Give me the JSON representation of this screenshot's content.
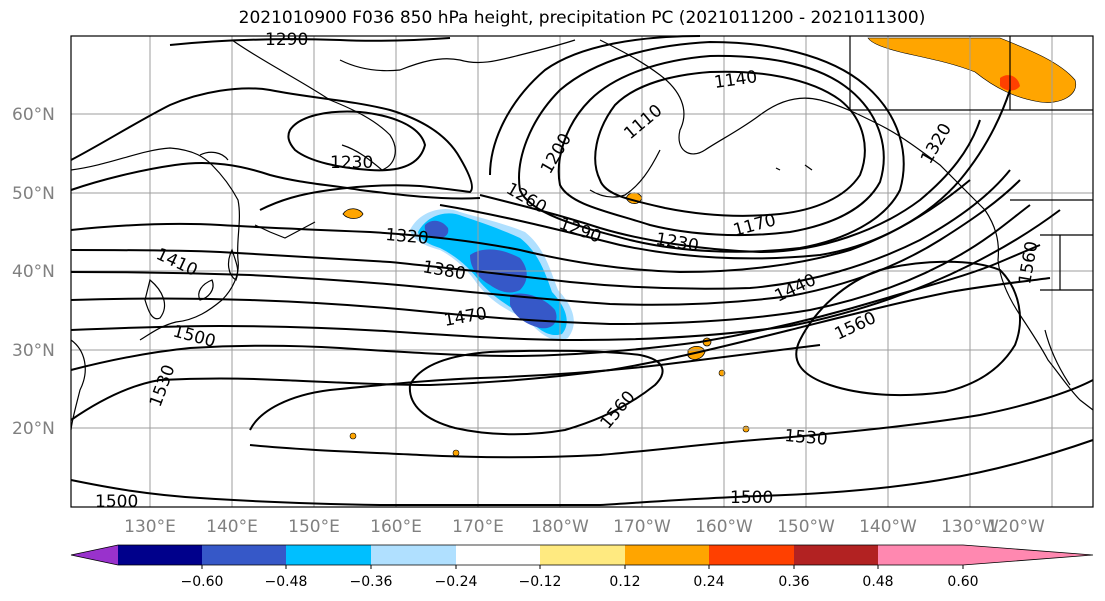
{
  "title": "2021010900 F036 850 hPa height, precipitation PC (2021011200 - 2021011300)",
  "map": {
    "lat_labels": [
      "60°N",
      "50°N",
      "40°N",
      "30°N",
      "20°N"
    ],
    "lon_labels": [
      "130°E",
      "140°E",
      "150°E",
      "160°E",
      "170°E",
      "180°W",
      "170°W",
      "160°W",
      "150°W",
      "140°W",
      "130°W",
      "120°W"
    ],
    "contour_labels": [
      "1290",
      "1230",
      "1140",
      "1110",
      "1200",
      "1260",
      "1290",
      "1230",
      "1170",
      "1320",
      "1380",
      "1410",
      "1470",
      "1500",
      "1530",
      "1440",
      "1560",
      "1560",
      "1530",
      "1500",
      "1500",
      "1560",
      "1320"
    ]
  },
  "colorbar": {
    "colors": [
      "#9932cc",
      "#00008b",
      "#3658c8",
      "#00bfff",
      "#b0e0ff",
      "#ffffff",
      "#ffea80",
      "#ffa500",
      "#ff4000",
      "#b22222",
      "#ff88b0"
    ],
    "tick_labels": [
      "−0.60",
      "−0.48",
      "−0.36",
      "−0.24",
      "−0.12",
      "0.12",
      "0.24",
      "0.36",
      "0.48",
      "0.60"
    ]
  }
}
